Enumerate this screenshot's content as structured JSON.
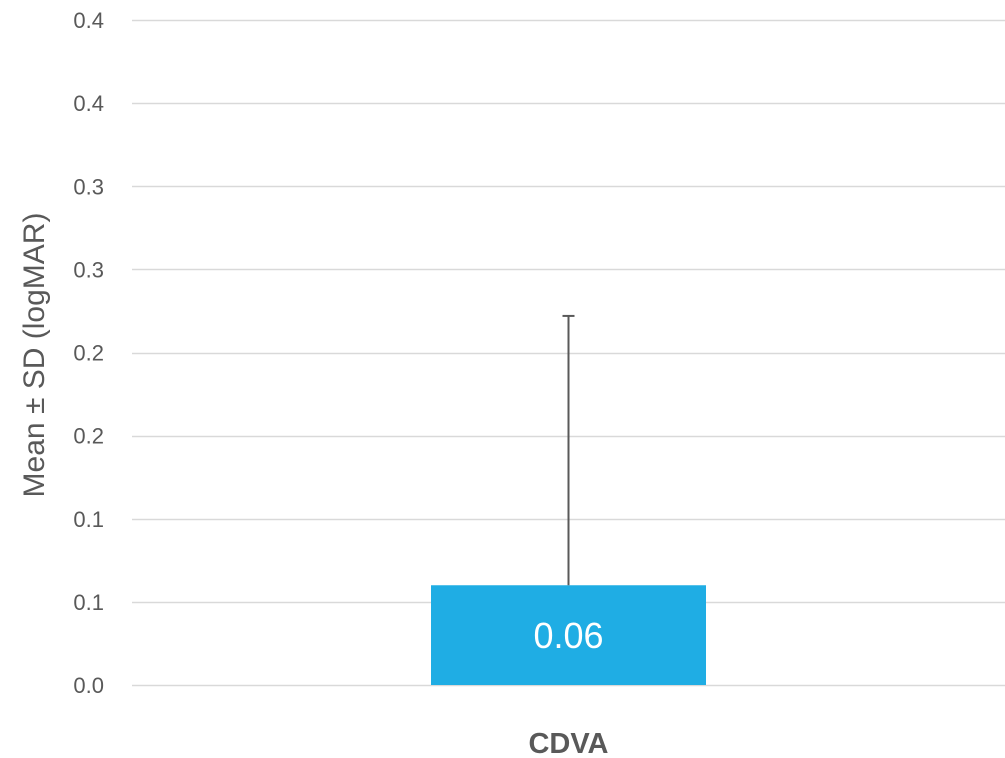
{
  "chart_data": {
    "type": "bar",
    "title": "",
    "xlabel": "",
    "ylabel": "Mean ± SD (logMAR)",
    "categories": [
      "CDVA"
    ],
    "values": [
      0.06
    ],
    "error_plus": [
      0.162
    ],
    "data_labels": [
      "0.06"
    ],
    "ylim": [
      0,
      0.4
    ],
    "yticks": [
      0,
      0.05,
      0.1,
      0.15,
      0.2,
      0.25,
      0.3,
      0.35,
      0.4
    ],
    "ytick_labels": [
      "0.0",
      "0.1",
      "0.1",
      "0.2",
      "0.2",
      "0.3",
      "0.3",
      "0.4",
      "0.4"
    ],
    "grid": true,
    "legend": "none",
    "bar_color": "#1fade4",
    "grid_color": "#d9d9d9",
    "error_bar_color": "#595959",
    "text_color": "#595959"
  }
}
